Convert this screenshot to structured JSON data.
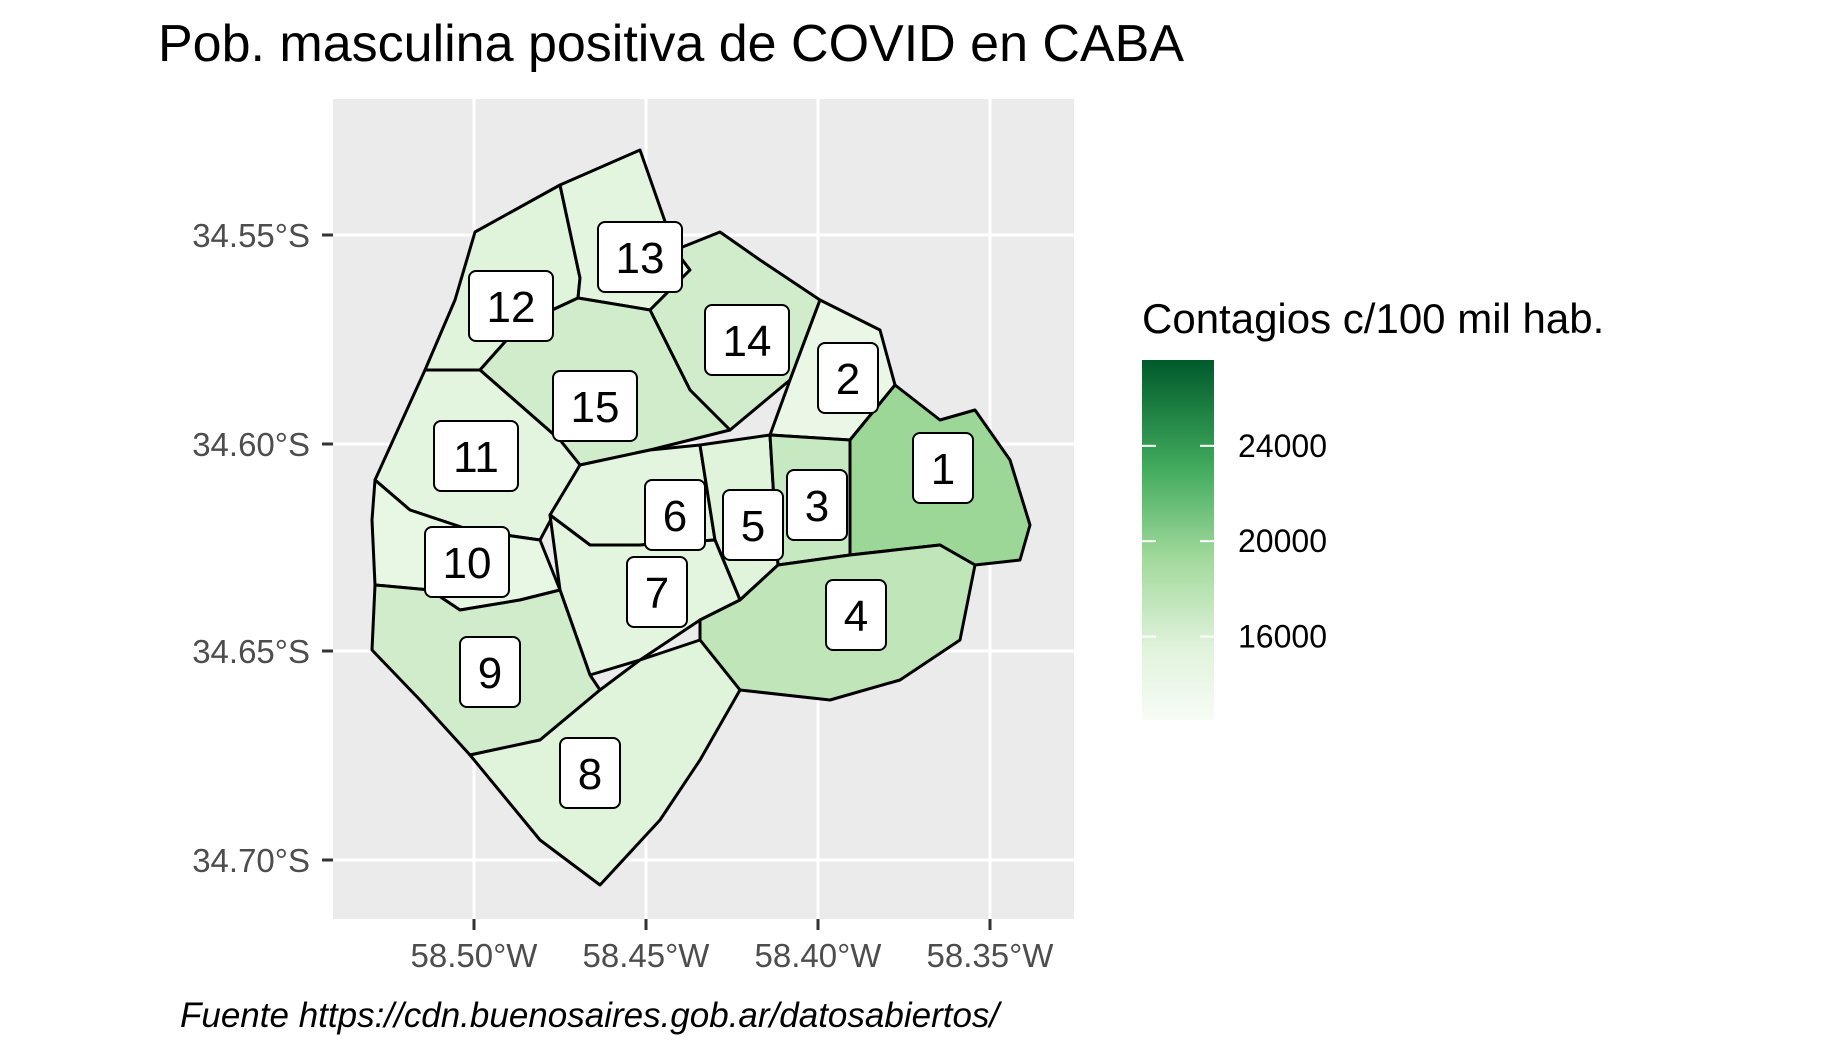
{
  "title": "Pob. masculina positiva de COVID en CABA",
  "caption": "Fuente https://cdn.buenosaires.gob.ar/datosabiertos/",
  "legend": {
    "title": "Contagios c/100 mil hab.",
    "ticks": [
      {
        "label": "24000",
        "value": 24000
      },
      {
        "label": "20000",
        "value": 20000
      },
      {
        "label": "16000",
        "value": 16000
      }
    ],
    "range": [
      12500,
      27600
    ],
    "color_low": "#f7fcf5",
    "color_high": "#00441b"
  },
  "axes": {
    "lat_ticks": [
      "34.55°S",
      "34.60°S",
      "34.65°S",
      "34.70°S"
    ],
    "lon_ticks": [
      "58.50°W",
      "58.45°W",
      "58.40°W",
      "58.35°W"
    ]
  },
  "colors": {
    "panel": "#ebebeb",
    "grid": "#ffffff",
    "border": "#000000"
  },
  "chart_data": {
    "type": "choropleth",
    "title": "Pob. masculina positiva de COVID en CABA",
    "legend_title": "Contagios c/100 mil hab.",
    "x_ticks": [
      "58.50°W",
      "58.45°W",
      "58.40°W",
      "58.35°W"
    ],
    "y_ticks": [
      "34.55°S",
      "34.60°S",
      "34.65°S",
      "34.70°S"
    ],
    "regions": [
      {
        "label": "1",
        "value": 19500
      },
      {
        "label": "2",
        "value": 14200
      },
      {
        "label": "3",
        "value": 17000
      },
      {
        "label": "4",
        "value": 17500
      },
      {
        "label": "5",
        "value": 15500
      },
      {
        "label": "6",
        "value": 15000
      },
      {
        "label": "7",
        "value": 15000
      },
      {
        "label": "8",
        "value": 15500
      },
      {
        "label": "9",
        "value": 16500
      },
      {
        "label": "10",
        "value": 14500
      },
      {
        "label": "11",
        "value": 15000
      },
      {
        "label": "12",
        "value": 15500
      },
      {
        "label": "13",
        "value": 15000
      },
      {
        "label": "14",
        "value": 16500
      },
      {
        "label": "15",
        "value": 16500
      }
    ],
    "legend_placement": "right"
  }
}
